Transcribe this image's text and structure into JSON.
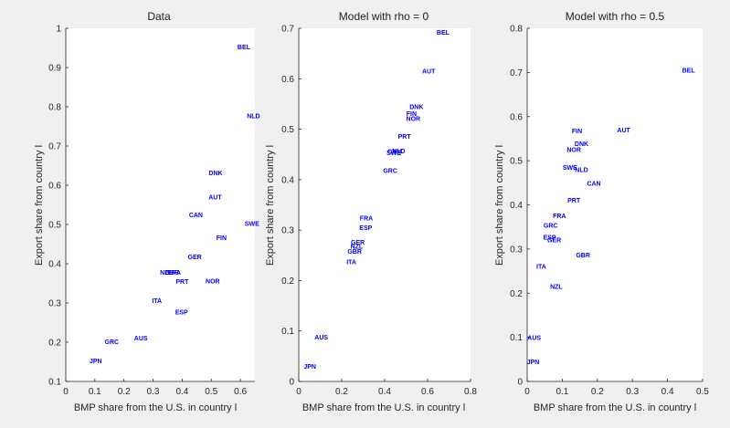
{
  "figure": {
    "background": "#f0f0f0",
    "axes_background": "#ffffff",
    "axis_color": "#262626",
    "marker_color": "#0000ff"
  },
  "chart_data": [
    {
      "type": "scatter",
      "title": "Data",
      "xlabel": "BMP share from the U.S. in country l",
      "ylabel": "Export share from country l",
      "xlim": [
        0,
        0.65
      ],
      "ylim": [
        0.1,
        1
      ],
      "xticks": [
        0,
        0.1,
        0.2,
        0.3,
        0.4,
        0.5,
        0.6
      ],
      "xtick_labels": [
        "0",
        "0.1",
        "0.2",
        "0.3",
        "0.4",
        "0.5",
        "0.6"
      ],
      "yticks": [
        0.1,
        0.2,
        0.3,
        0.4,
        0.5,
        0.6,
        0.7,
        0.8,
        0.9,
        1
      ],
      "ytick_labels": [
        "0.1",
        "0.2",
        "0.3",
        "0.4",
        "0.5",
        "0.6",
        "0.7",
        "0.8",
        "0.9",
        "1"
      ],
      "grid": false,
      "points": [
        {
          "label": "BEL",
          "x": 0.612,
          "y": 0.952
        },
        {
          "label": "NLD",
          "x": 0.645,
          "y": 0.777
        },
        {
          "label": "DNK",
          "x": 0.515,
          "y": 0.631
        },
        {
          "label": "AUT",
          "x": 0.513,
          "y": 0.57
        },
        {
          "label": "CAN",
          "x": 0.447,
          "y": 0.524
        },
        {
          "label": "SWE",
          "x": 0.64,
          "y": 0.502
        },
        {
          "label": "FIN",
          "x": 0.535,
          "y": 0.466
        },
        {
          "label": "GER",
          "x": 0.443,
          "y": 0.418
        },
        {
          "label": "NZL",
          "x": 0.345,
          "y": 0.378
        },
        {
          "label": "GBR",
          "x": 0.365,
          "y": 0.378
        },
        {
          "label": "FRA",
          "x": 0.373,
          "y": 0.378
        },
        {
          "label": "PRT",
          "x": 0.4,
          "y": 0.355
        },
        {
          "label": "NOR",
          "x": 0.505,
          "y": 0.356
        },
        {
          "label": "ITA",
          "x": 0.313,
          "y": 0.306
        },
        {
          "label": "ESP",
          "x": 0.398,
          "y": 0.277
        },
        {
          "label": "AUS",
          "x": 0.258,
          "y": 0.211
        },
        {
          "label": "GRC",
          "x": 0.158,
          "y": 0.201
        },
        {
          "label": "JPN",
          "x": 0.103,
          "y": 0.152
        }
      ]
    },
    {
      "type": "scatter",
      "title": "Model with rho = 0",
      "xlabel": "BMP share from the U.S. in country l",
      "ylabel": "Export share from country l",
      "xlim": [
        0,
        0.8
      ],
      "ylim": [
        0,
        0.7
      ],
      "xticks": [
        0,
        0.2,
        0.4,
        0.6,
        0.8
      ],
      "xtick_labels": [
        "0",
        "0.2",
        "0.4",
        "0.6",
        "0.8"
      ],
      "yticks": [
        0,
        0.1,
        0.2,
        0.3,
        0.4,
        0.5,
        0.6,
        0.7
      ],
      "ytick_labels": [
        "0",
        "0.1",
        "0.2",
        "0.3",
        "0.4",
        "0.5",
        "0.6",
        "0.7"
      ],
      "grid": false,
      "points": [
        {
          "label": "BEL",
          "x": 0.672,
          "y": 0.692
        },
        {
          "label": "AUT",
          "x": 0.605,
          "y": 0.615
        },
        {
          "label": "DNK",
          "x": 0.548,
          "y": 0.544
        },
        {
          "label": "FIN",
          "x": 0.525,
          "y": 0.531
        },
        {
          "label": "NOR",
          "x": 0.533,
          "y": 0.521
        },
        {
          "label": "PRT",
          "x": 0.492,
          "y": 0.486
        },
        {
          "label": "NLD",
          "x": 0.465,
          "y": 0.457
        },
        {
          "label": "CAN",
          "x": 0.445,
          "y": 0.456
        },
        {
          "label": "SWE",
          "x": 0.443,
          "y": 0.453
        },
        {
          "label": "GRC",
          "x": 0.426,
          "y": 0.418
        },
        {
          "label": "FRA",
          "x": 0.315,
          "y": 0.324
        },
        {
          "label": "ESP",
          "x": 0.312,
          "y": 0.305
        },
        {
          "label": "GER",
          "x": 0.275,
          "y": 0.276
        },
        {
          "label": "NZL",
          "x": 0.27,
          "y": 0.268
        },
        {
          "label": "GBR",
          "x": 0.26,
          "y": 0.258
        },
        {
          "label": "ITA",
          "x": 0.245,
          "y": 0.237
        },
        {
          "label": "AUS",
          "x": 0.105,
          "y": 0.088
        },
        {
          "label": "JPN",
          "x": 0.052,
          "y": 0.03
        }
      ]
    },
    {
      "type": "scatter",
      "title": "Model with rho = 0.5",
      "xlabel": "BMP share from the U.S. in country l",
      "ylabel": "Export share from country l",
      "xlim": [
        0,
        0.5
      ],
      "ylim": [
        0,
        0.8
      ],
      "xticks": [
        0,
        0.1,
        0.2,
        0.3,
        0.4,
        0.5
      ],
      "xtick_labels": [
        "0",
        "0.1",
        "0.2",
        "0.3",
        "0.4",
        "0.5"
      ],
      "yticks": [
        0,
        0.1,
        0.2,
        0.3,
        0.4,
        0.5,
        0.6,
        0.7,
        0.8
      ],
      "ytick_labels": [
        "0",
        "0.1",
        "0.2",
        "0.3",
        "0.4",
        "0.5",
        "0.6",
        "0.7",
        "0.8"
      ],
      "grid": false,
      "points": [
        {
          "label": "BEL",
          "x": 0.46,
          "y": 0.705
        },
        {
          "label": "AUT",
          "x": 0.275,
          "y": 0.57
        },
        {
          "label": "FIN",
          "x": 0.142,
          "y": 0.567
        },
        {
          "label": "DNK",
          "x": 0.155,
          "y": 0.538
        },
        {
          "label": "NOR",
          "x": 0.133,
          "y": 0.525
        },
        {
          "label": "SWE",
          "x": 0.122,
          "y": 0.485
        },
        {
          "label": "NLD",
          "x": 0.155,
          "y": 0.48
        },
        {
          "label": "CAN",
          "x": 0.19,
          "y": 0.449
        },
        {
          "label": "PRT",
          "x": 0.133,
          "y": 0.41
        },
        {
          "label": "FRA",
          "x": 0.092,
          "y": 0.375
        },
        {
          "label": "GRC",
          "x": 0.067,
          "y": 0.354
        },
        {
          "label": "ESP",
          "x": 0.064,
          "y": 0.327
        },
        {
          "label": "GER",
          "x": 0.077,
          "y": 0.32
        },
        {
          "label": "GBR",
          "x": 0.159,
          "y": 0.286
        },
        {
          "label": "ITA",
          "x": 0.04,
          "y": 0.26
        },
        {
          "label": "NZL",
          "x": 0.083,
          "y": 0.215
        },
        {
          "label": "AUS",
          "x": 0.02,
          "y": 0.099
        },
        {
          "label": "JPN",
          "x": 0.017,
          "y": 0.044
        }
      ]
    }
  ]
}
